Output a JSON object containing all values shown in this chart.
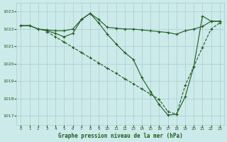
{
  "title": "Graphe pression niveau de la mer (hPa)",
  "background_color": "#cceaea",
  "grid_color": "#aacccc",
  "line_color": "#1e5c1e",
  "x_ticks": [
    0,
    1,
    2,
    3,
    4,
    5,
    6,
    7,
    8,
    9,
    10,
    11,
    12,
    13,
    14,
    15,
    16,
    17,
    18,
    19,
    20,
    21,
    22,
    23
  ],
  "ylim": [
    1016.5,
    1023.5
  ],
  "yticks": [
    1017,
    1018,
    1019,
    1020,
    1021,
    1022,
    1023
  ],
  "line1_x": [
    0,
    1,
    2,
    3,
    4,
    5,
    6,
    7,
    8,
    9,
    10,
    11,
    12,
    13,
    14,
    15,
    16,
    17,
    18,
    19,
    20,
    21,
    22,
    23
  ],
  "line1_y": [
    1022.2,
    1022.2,
    1022.0,
    1021.95,
    1021.9,
    1021.9,
    1022.0,
    1022.55,
    1022.9,
    1022.55,
    1022.1,
    1022.05,
    1022.0,
    1022.0,
    1021.95,
    1021.9,
    1021.85,
    1021.8,
    1021.7,
    1021.9,
    1022.0,
    1022.15,
    1022.45,
    1022.45
  ],
  "line2_x": [
    0,
    1,
    2,
    3,
    4,
    5,
    6,
    7,
    8,
    9,
    10,
    11,
    12,
    13,
    14,
    15,
    16,
    17,
    18,
    19,
    20,
    21,
    22,
    23
  ],
  "line2_y": [
    1022.2,
    1022.2,
    1022.0,
    1021.9,
    1021.75,
    1021.55,
    1021.75,
    1022.55,
    1022.9,
    1022.35,
    1021.7,
    1021.15,
    1020.65,
    1020.25,
    1019.2,
    1018.4,
    1017.65,
    1017.05,
    1017.1,
    1018.1,
    1019.85,
    1022.75,
    1022.45,
    1022.45
  ],
  "line3_x": [
    3,
    4,
    5,
    6,
    7,
    8,
    9,
    10,
    11,
    12,
    13,
    14,
    15,
    16,
    17,
    18,
    19,
    20,
    21,
    22,
    23
  ],
  "line3_y": [
    1021.85,
    1021.55,
    1021.25,
    1020.95,
    1020.65,
    1020.35,
    1020.05,
    1019.75,
    1019.45,
    1019.15,
    1018.85,
    1018.55,
    1018.25,
    1017.95,
    1017.25,
    1017.1,
    1018.75,
    1019.85,
    1020.95,
    1022.0,
    1022.35
  ],
  "line3_dashed": true
}
